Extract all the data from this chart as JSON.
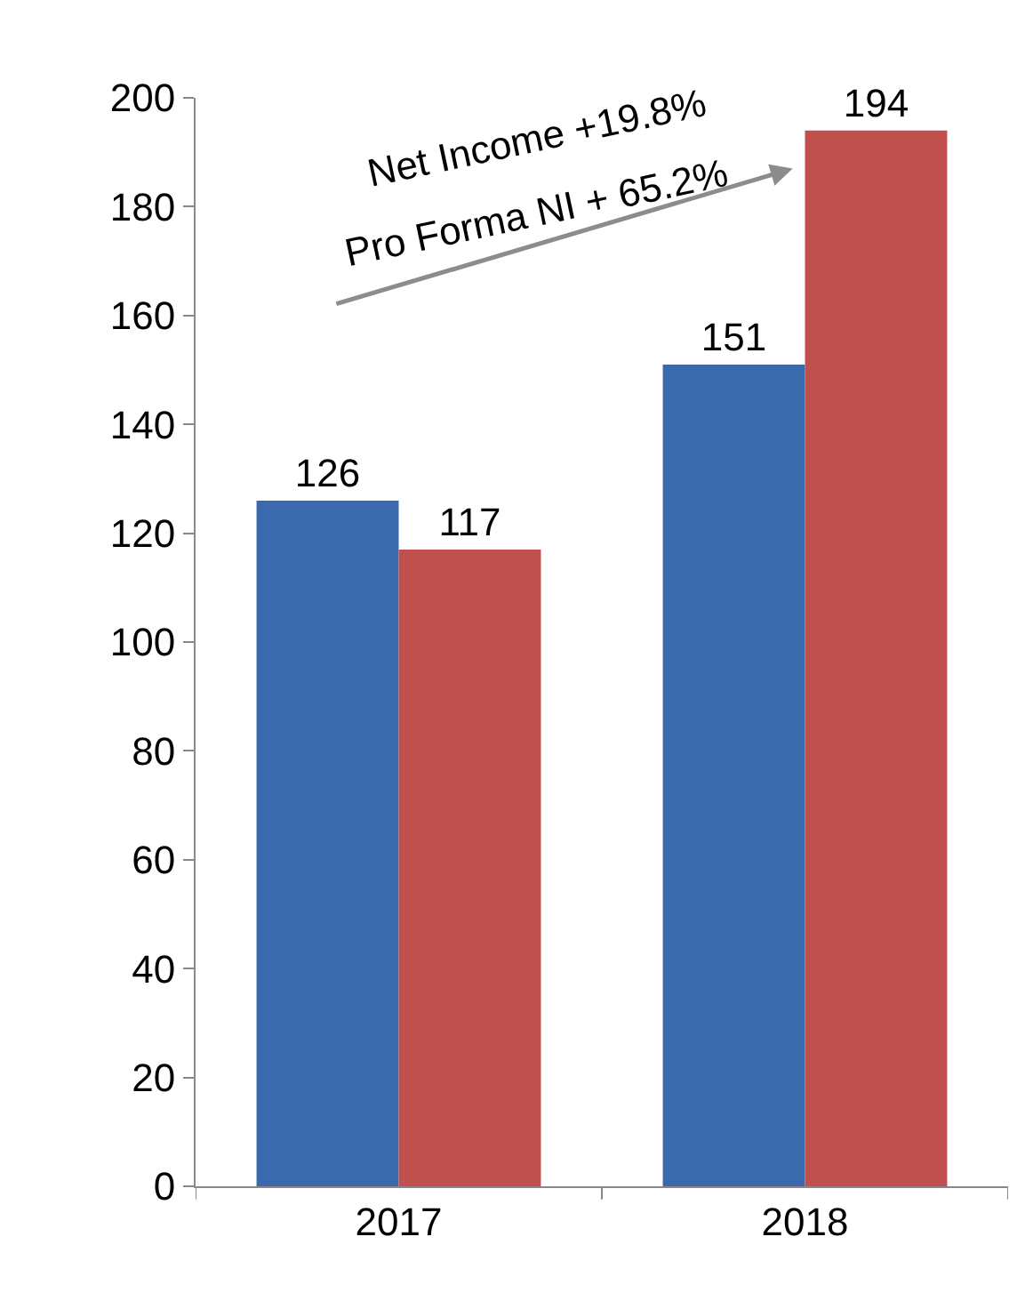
{
  "chart_data": {
    "type": "bar",
    "categories": [
      "2017",
      "2018"
    ],
    "series": [
      {
        "color": "#3a6aad",
        "values": [
          126,
          151
        ]
      },
      {
        "color": "#c0504d",
        "values": [
          117,
          194
        ]
      }
    ],
    "data_labels": true,
    "ylim": [
      0,
      200
    ],
    "yticks": [
      0,
      20,
      40,
      60,
      80,
      100,
      120,
      140,
      160,
      180,
      200
    ],
    "annotations": [
      "Net Income +19.8%",
      "Pro Forma NI + 65.2%"
    ]
  }
}
